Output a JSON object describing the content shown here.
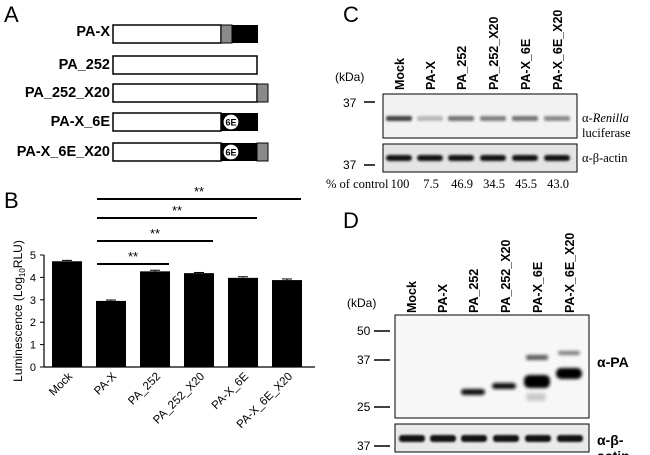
{
  "panels": {
    "a": "A",
    "b": "B",
    "c": "C",
    "d": "D"
  },
  "panel_a": {
    "constructs": [
      {
        "name": "PA-X",
        "bold": true,
        "x20": true,
        "x_frame": true,
        "mut_6e": false
      },
      {
        "name": "PA_252",
        "bold": true,
        "x20": false,
        "x_frame": false,
        "mut_6e": false
      },
      {
        "name": "PA_252_X20",
        "bold": true,
        "x20": true,
        "x_frame": false,
        "mut_6e": false
      },
      {
        "name": "PA-X_6E",
        "bold": true,
        "x20": false,
        "x_frame": true,
        "mut_6e": true
      },
      {
        "name": "PA-X_6E_X20",
        "bold": true,
        "x20": true,
        "x_frame": true,
        "mut_6e": true
      }
    ],
    "mut_label": "6E"
  },
  "chart_data": {
    "type": "bar",
    "categories": [
      "Mock",
      "PA-X",
      "PA_252",
      "PA_252_X20",
      "PA-X_6E",
      "PA-X_6E_X20"
    ],
    "values": [
      4.72,
      2.95,
      4.27,
      4.19,
      3.98,
      3.88
    ],
    "errors": [
      0.04,
      0.04,
      0.05,
      0.03,
      0.05,
      0.05
    ],
    "ylabel": "Luminescence (Log10RLU)",
    "ylabel_main": "Luminescence (Log",
    "ylabel_sub": "10",
    "ylabel_tail": "RLU)",
    "ylim": [
      0,
      5
    ],
    "yticks": [
      "0",
      "1",
      "2",
      "3",
      "4",
      "5"
    ],
    "bar_color": "#000000",
    "significance": [
      {
        "from": "PA-X",
        "to": "PA_252",
        "label": "**"
      },
      {
        "from": "PA-X",
        "to": "PA_252_X20",
        "label": "**"
      },
      {
        "from": "PA-X",
        "to": "PA-X_6E",
        "label": "**"
      },
      {
        "from": "PA-X",
        "to": "PA-X_6E_X20",
        "label": "**"
      }
    ]
  },
  "panel_c": {
    "kda": "(kDa)",
    "marker": "37",
    "marker2": "37",
    "lanes": [
      "Mock",
      "PA-X",
      "PA_252",
      "PA_252_X20",
      "PA-X_6E",
      "PA-X_6E_X20"
    ],
    "blot1_label_prefix": "α-",
    "blot1_label_italic": "Renilla",
    "blot1_label_suffix": " luciferase",
    "blot2_label": "α-β-actin",
    "percent_label": "% of control",
    "percents": [
      "100",
      "7.5",
      "46.9",
      "34.5",
      "45.5",
      "43.0"
    ]
  },
  "panel_d": {
    "kda": "(kDa)",
    "markers": [
      "50",
      "37",
      "25"
    ],
    "marker_actin": "37",
    "lanes": [
      "Mock",
      "PA-X",
      "PA_252",
      "PA_252_X20",
      "PA-X_6E",
      "PA-X_6E_X20"
    ],
    "blot1_label": "α-PA",
    "blot2_label": "α-β-actin"
  }
}
